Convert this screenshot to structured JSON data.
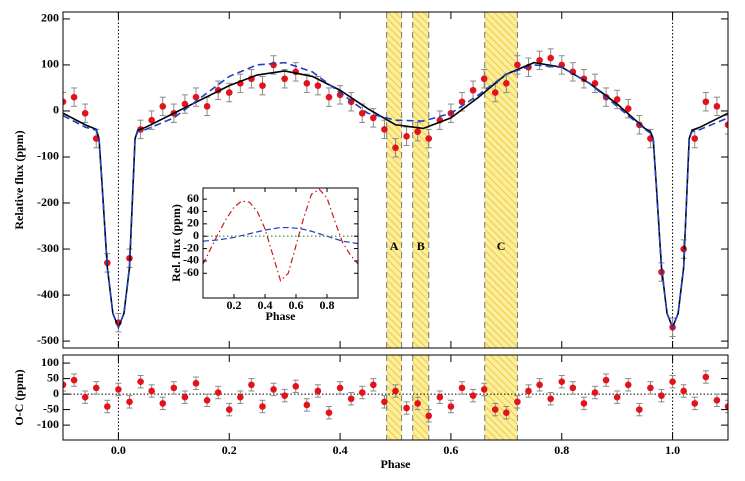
{
  "chart_data": [
    {
      "type": "scatter",
      "ylabel": "Relative flux (ppm)",
      "xlim": [
        -0.1,
        1.1
      ],
      "ylim": [
        -515,
        215
      ],
      "xticks": [
        0,
        0.2,
        0.4,
        0.6,
        0.8,
        1
      ],
      "yticks": [
        200,
        100,
        0,
        -100,
        -200,
        -300,
        -400,
        -500
      ],
      "vlines": [
        0,
        1
      ],
      "regions": [
        {
          "label": "A",
          "x": [
            0.484,
            0.511
          ]
        },
        {
          "label": "B",
          "x": [
            0.531,
            0.56
          ]
        },
        {
          "label": "C",
          "x": [
            0.661,
            0.72
          ]
        }
      ],
      "points": {
        "color": "#e3121b",
        "error": 20,
        "x": [
          -0.1,
          -0.08,
          -0.06,
          -0.04,
          -0.02,
          0,
          0.02,
          0.04,
          0.06,
          0.08,
          0.1,
          0.12,
          0.14,
          0.16,
          0.18,
          0.2,
          0.22,
          0.24,
          0.26,
          0.28,
          0.3,
          0.32,
          0.34,
          0.36,
          0.38,
          0.4,
          0.42,
          0.44,
          0.46,
          0.48,
          0.5,
          0.52,
          0.54,
          0.56,
          0.58,
          0.6,
          0.62,
          0.64,
          0.66,
          0.68,
          0.7,
          0.72,
          0.74,
          0.76,
          0.78,
          0.8,
          0.82,
          0.84,
          0.86,
          0.88,
          0.9,
          0.92,
          0.94,
          0.96,
          0.98,
          1,
          1.02,
          1.04,
          1.06,
          1.08,
          1.1
        ],
        "values": [
          20,
          30,
          -5,
          -60,
          -330,
          -460,
          -320,
          -40,
          -20,
          10,
          -5,
          15,
          30,
          10,
          45,
          40,
          60,
          70,
          55,
          100,
          70,
          85,
          60,
          55,
          30,
          35,
          20,
          -5,
          -15,
          -40,
          -80,
          -55,
          -45,
          -60,
          -20,
          -5,
          20,
          45,
          70,
          40,
          60,
          100,
          95,
          110,
          115,
          100,
          85,
          70,
          60,
          30,
          25,
          5,
          -30,
          -60,
          -350,
          -470,
          -300,
          -60,
          20,
          10,
          -30
        ]
      },
      "series": [
        {
          "color": "#000000",
          "dash": "none",
          "x": [
            -0.1,
            -0.06,
            -0.04,
            -0.035,
            -0.03,
            -0.02,
            -0.01,
            0,
            0.01,
            0.02,
            0.025,
            0.03,
            0.035,
            0.05,
            0.1,
            0.15,
            0.2,
            0.25,
            0.3,
            0.35,
            0.4,
            0.45,
            0.5,
            0.55,
            0.6,
            0.65,
            0.7,
            0.75,
            0.8,
            0.85,
            0.9,
            0.95,
            0.96,
            0.965,
            0.97,
            0.98,
            0.99,
            1,
            1.01,
            1.02,
            1.025,
            1.03,
            1.035,
            1.05,
            1.1
          ],
          "values": [
            -5,
            -30,
            -40,
            -60,
            -150,
            -340,
            -440,
            -470,
            -440,
            -340,
            -200,
            -60,
            -42,
            -35,
            -5,
            25,
            55,
            78,
            87,
            75,
            45,
            5,
            -30,
            -38,
            -15,
            30,
            80,
            105,
            95,
            60,
            15,
            -38,
            -45,
            -60,
            -150,
            -340,
            -440,
            -470,
            -440,
            -340,
            -200,
            -60,
            -42,
            -35,
            -5
          ]
        },
        {
          "color": "#1f3fc4",
          "dash": "7 4",
          "x": [
            -0.1,
            -0.06,
            -0.04,
            -0.035,
            -0.03,
            -0.02,
            -0.01,
            0,
            0.01,
            0.02,
            0.025,
            0.03,
            0.035,
            0.05,
            0.1,
            0.15,
            0.2,
            0.25,
            0.3,
            0.35,
            0.4,
            0.45,
            0.5,
            0.55,
            0.6,
            0.65,
            0.7,
            0.75,
            0.8,
            0.85,
            0.9,
            0.95,
            0.96,
            0.965,
            0.97,
            0.98,
            0.99,
            1,
            1.01,
            1.02,
            1.025,
            1.03,
            1.035,
            1.05,
            1.1
          ],
          "values": [
            -10,
            -35,
            -42,
            -60,
            -150,
            -340,
            -440,
            -470,
            -440,
            -340,
            -200,
            -60,
            -45,
            -40,
            -15,
            30,
            75,
            100,
            105,
            85,
            40,
            -5,
            -20,
            -22,
            -5,
            35,
            80,
            100,
            95,
            60,
            10,
            -40,
            -48,
            -60,
            -150,
            -340,
            -440,
            -470,
            -440,
            -340,
            -200,
            -60,
            -45,
            -40,
            -15
          ]
        }
      ]
    },
    {
      "type": "scatter",
      "xlabel": "Phase",
      "ylabel": "O-C (ppm)",
      "xlim": [
        -0.1,
        1.1
      ],
      "ylim": [
        -148,
        126
      ],
      "xticks": [
        {
          "value": 0,
          "label": "0.0"
        },
        0.2,
        0.4,
        0.6,
        0.8,
        {
          "value": 1,
          "label": "1.0"
        }
      ],
      "yticks": [
        100,
        50,
        0,
        -50,
        -100
      ],
      "vlines": [
        0,
        1
      ],
      "hline": 0,
      "regions": [
        {
          "x": [
            0.484,
            0.511
          ]
        },
        {
          "x": [
            0.531,
            0.56
          ]
        },
        {
          "x": [
            0.661,
            0.72
          ]
        }
      ],
      "points": {
        "color": "#e3121b",
        "error": 20,
        "x": [
          -0.1,
          -0.08,
          -0.06,
          -0.04,
          -0.02,
          0,
          0.02,
          0.04,
          0.06,
          0.08,
          0.1,
          0.12,
          0.14,
          0.16,
          0.18,
          0.2,
          0.22,
          0.24,
          0.26,
          0.28,
          0.3,
          0.32,
          0.34,
          0.36,
          0.38,
          0.4,
          0.42,
          0.44,
          0.46,
          0.48,
          0.5,
          0.52,
          0.54,
          0.56,
          0.58,
          0.6,
          0.62,
          0.64,
          0.66,
          0.68,
          0.7,
          0.72,
          0.74,
          0.76,
          0.78,
          0.8,
          0.82,
          0.84,
          0.86,
          0.88,
          0.9,
          0.92,
          0.94,
          0.96,
          0.98,
          1,
          1.02,
          1.04,
          1.06,
          1.08,
          1.1
        ],
        "values": [
          30,
          45,
          -10,
          20,
          -40,
          15,
          -25,
          40,
          10,
          -30,
          20,
          -10,
          35,
          -20,
          5,
          -50,
          -10,
          30,
          -40,
          15,
          -5,
          25,
          -35,
          10,
          -60,
          20,
          -15,
          5,
          30,
          -25,
          10,
          -45,
          -30,
          -70,
          -10,
          -40,
          20,
          -5,
          15,
          -50,
          -60,
          -25,
          10,
          30,
          -15,
          40,
          20,
          -30,
          5,
          45,
          -10,
          30,
          -50,
          20,
          -5,
          40,
          10,
          -30,
          55,
          -20,
          -40
        ]
      },
      "series": []
    },
    {
      "type": "line",
      "xlabel": "Phase",
      "ylabel": "Rel. flux (ppm)",
      "xlim": [
        0,
        1
      ],
      "ylim": [
        -100,
        78
      ],
      "xticks": [
        0.2,
        0.4,
        0.6,
        0.8
      ],
      "yticks": [
        60,
        40,
        20,
        0,
        -20,
        -40,
        -60
      ],
      "x": [
        0,
        0.05,
        0.1,
        0.15,
        0.2,
        0.25,
        0.3,
        0.35,
        0.4,
        0.45,
        0.5,
        0.55,
        0.6,
        0.65,
        0.7,
        0.75,
        0.8,
        0.85,
        0.9,
        0.95,
        1
      ],
      "series": [
        {
          "color": "#d01818",
          "dash": "6 3 1.5 3",
          "values": [
            -45,
            -20,
            5,
            28,
            47,
            57,
            55,
            40,
            12,
            -30,
            -72,
            -60,
            -15,
            30,
            68,
            76,
            62,
            25,
            -10,
            -30,
            -45
          ]
        },
        {
          "color": "#1f3fc4",
          "dash": "6 3",
          "values": [
            -8,
            -7,
            -6,
            -4,
            -2,
            1,
            4,
            7,
            10,
            12,
            14,
            14,
            13,
            11,
            8,
            4,
            0,
            -4,
            -8,
            -10,
            -12
          ]
        },
        {
          "color": "#2a8a2a",
          "dash": "1.5 2.5",
          "values": [
            0,
            0,
            0,
            0,
            0,
            0,
            0,
            0,
            0,
            0,
            0,
            0,
            0,
            0,
            0,
            0,
            0,
            0,
            0,
            0,
            0
          ]
        }
      ]
    }
  ]
}
